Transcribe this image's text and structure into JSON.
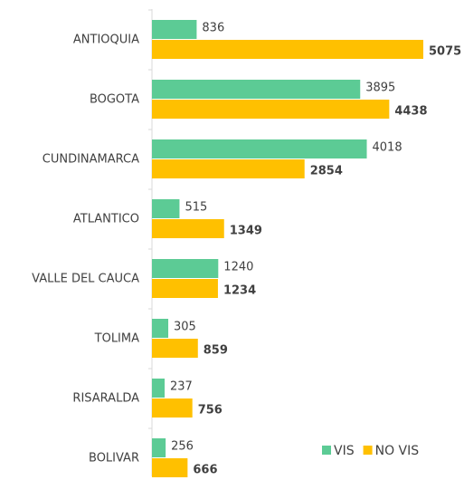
{
  "chart_data": {
    "type": "bar",
    "orientation": "horizontal",
    "categories": [
      "ANTIOQUIA",
      "BOGOTA",
      "CUNDINAMARCA",
      "ATLANTICO",
      "VALLE DEL CAUCA",
      "TOLIMA",
      "RISARALDA",
      "BOLIVAR"
    ],
    "series": [
      {
        "name": "VIS",
        "color": "#5ccb95",
        "values": [
          836,
          3895,
          4018,
          515,
          1240,
          305,
          237,
          256
        ]
      },
      {
        "name": "NO VIS",
        "color": "#ffc000",
        "values": [
          5075,
          4438,
          2854,
          1349,
          1234,
          859,
          756,
          666
        ]
      }
    ],
    "legend": "bottom-right"
  }
}
